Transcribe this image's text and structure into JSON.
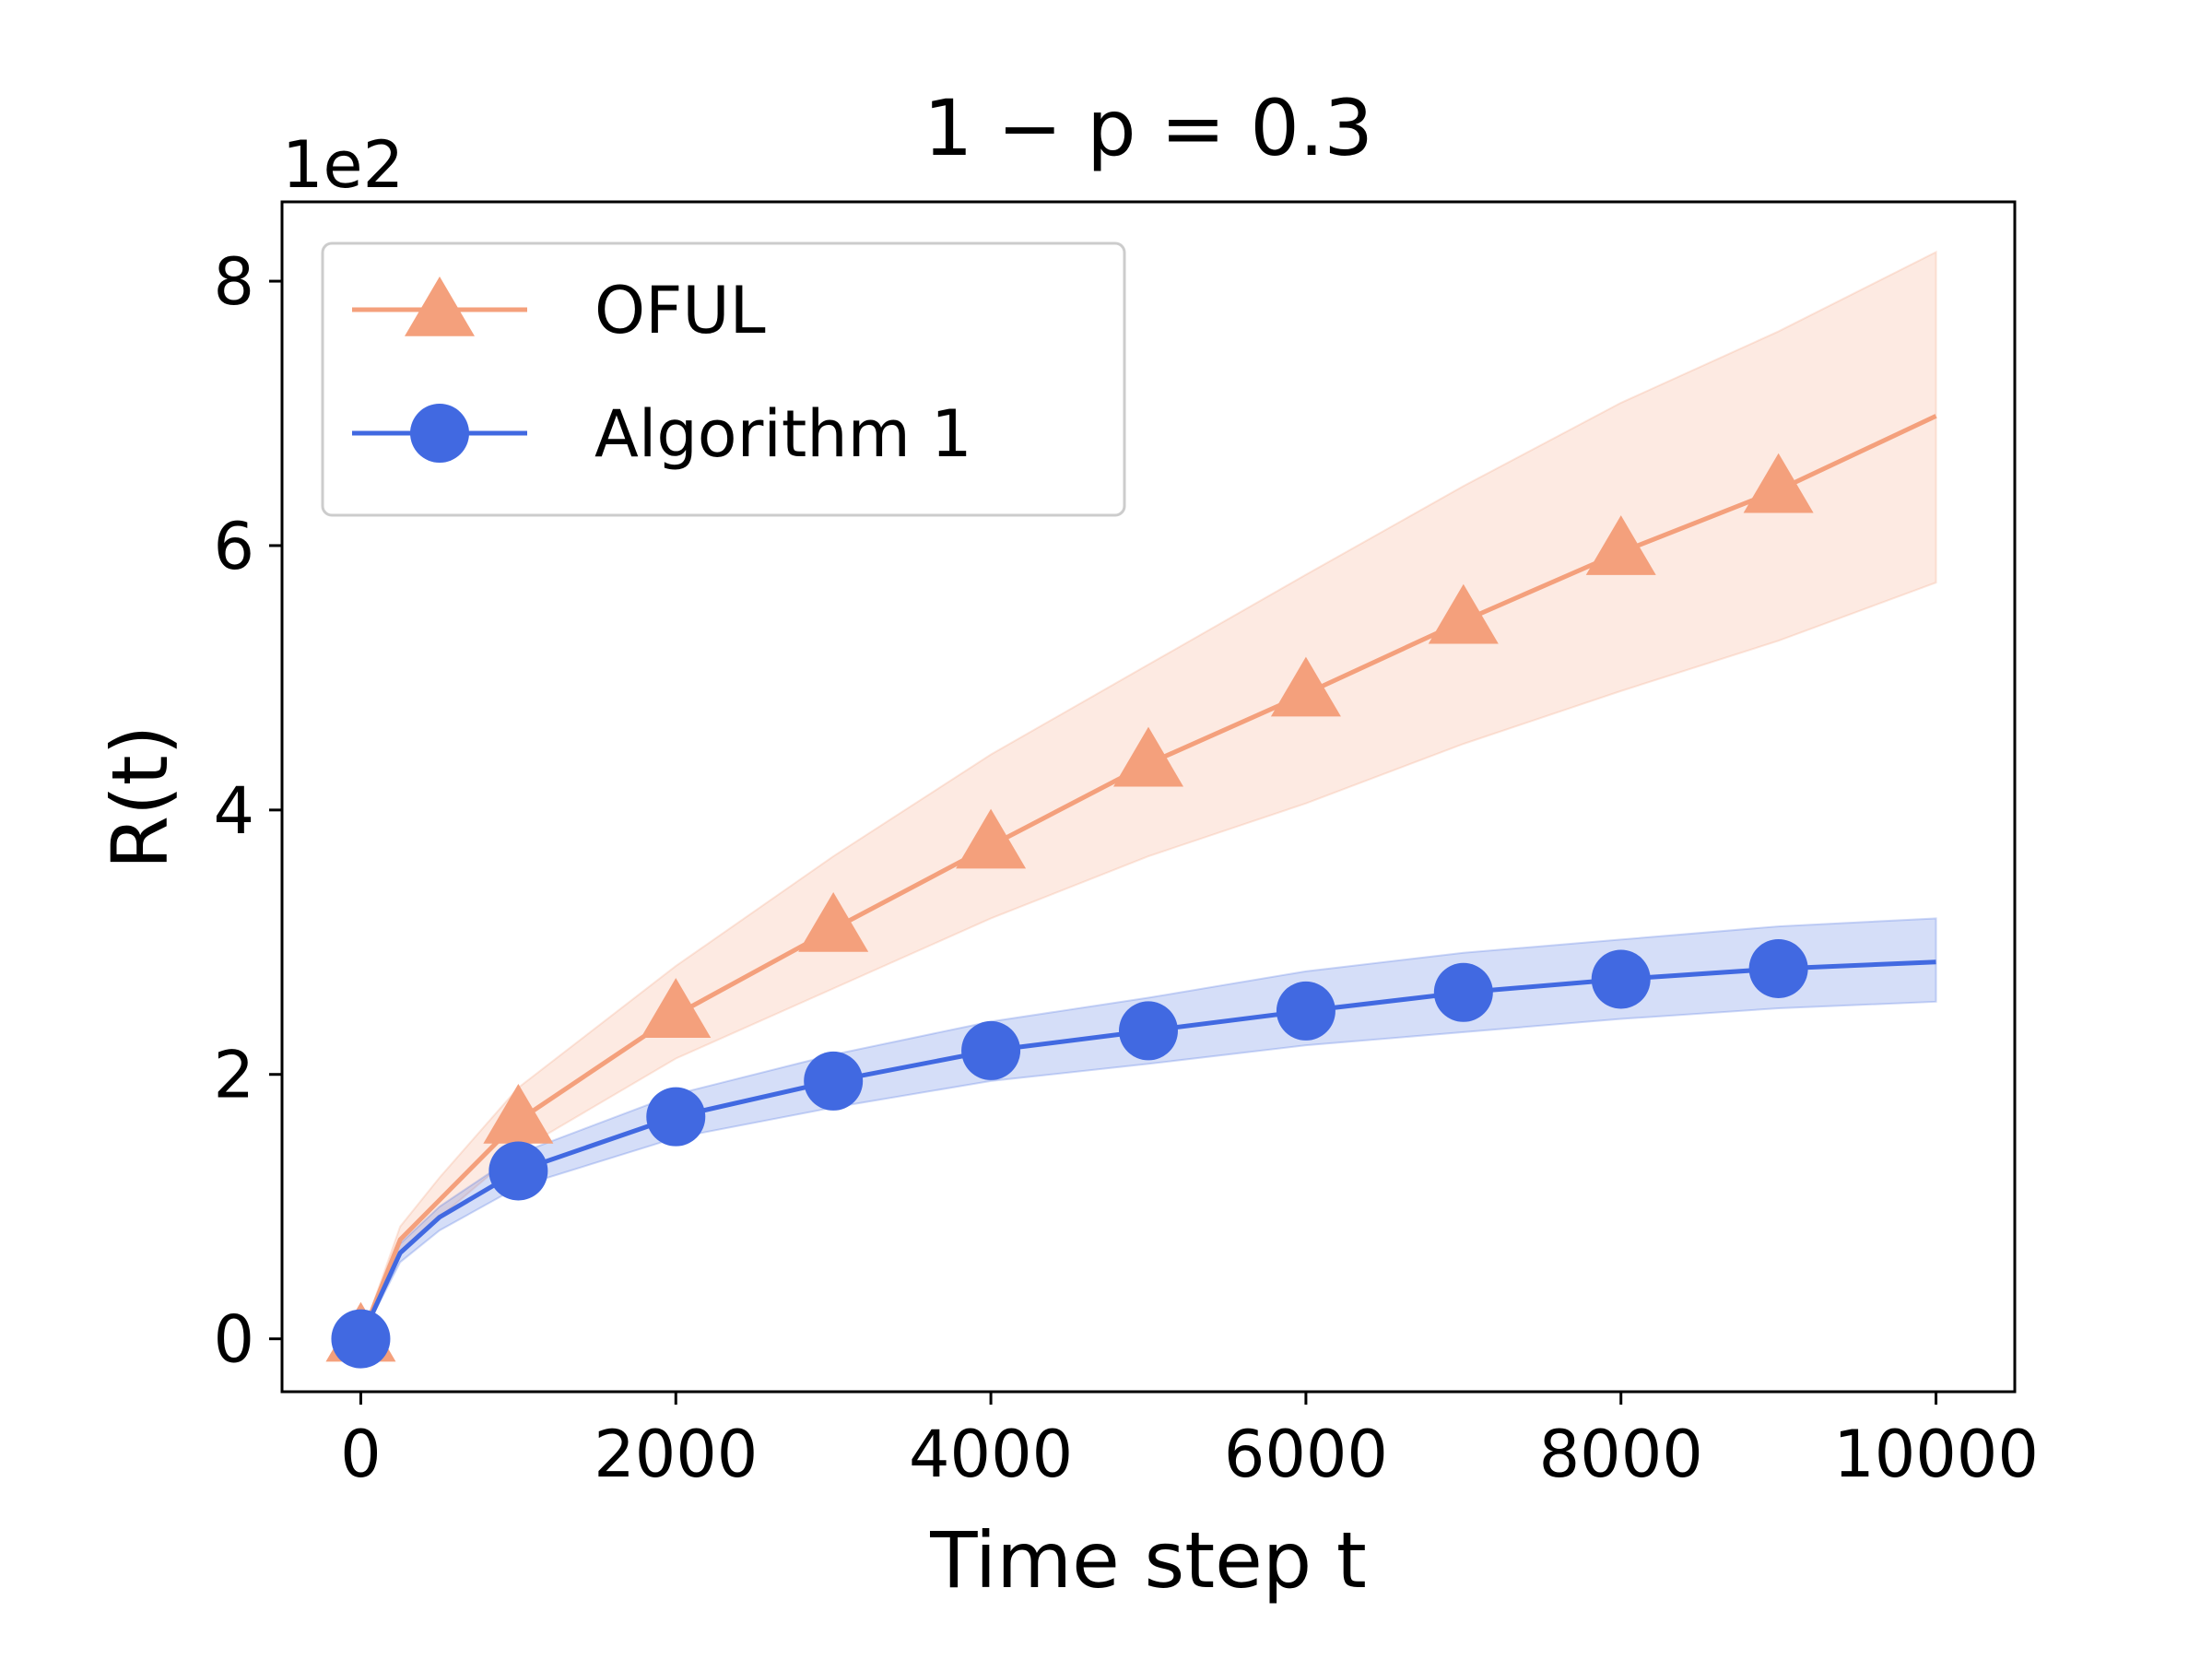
{
  "chart_data": {
    "type": "line",
    "title": "1 − p = 0.3",
    "xlabel": "Time step t",
    "ylabel": "R(t)",
    "y_scale_label": "1e2",
    "xlim": [
      -500,
      10500
    ],
    "ylim": [
      -0.4,
      8.6
    ],
    "x_ticks": [
      0,
      2000,
      4000,
      6000,
      8000,
      10000
    ],
    "y_ticks": [
      0,
      2,
      4,
      6,
      8
    ],
    "grid": false,
    "legend_position": "top-left",
    "series": [
      {
        "name": "OFUL",
        "color": "#f4a07c",
        "marker": "triangle",
        "x": [
          0,
          250,
          500,
          1000,
          2000,
          3000,
          4000,
          5000,
          6000,
          7000,
          8000,
          9000,
          10000
        ],
        "mean": [
          0,
          0.75,
          1.05,
          1.65,
          2.45,
          3.1,
          3.73,
          4.35,
          4.88,
          5.43,
          5.95,
          6.42,
          6.98
        ],
        "upper": [
          0,
          0.85,
          1.22,
          1.9,
          2.82,
          3.65,
          4.42,
          5.1,
          5.78,
          6.45,
          7.08,
          7.62,
          8.22
        ],
        "lower": [
          0,
          0.65,
          0.92,
          1.42,
          2.12,
          2.65,
          3.18,
          3.65,
          4.05,
          4.5,
          4.9,
          5.28,
          5.72
        ],
        "markers_x": [
          0,
          1000,
          2000,
          3000,
          4000,
          5000,
          6000,
          7000,
          8000,
          9000
        ],
        "markers_y": [
          0,
          1.65,
          2.45,
          3.1,
          3.73,
          4.35,
          4.88,
          5.43,
          5.95,
          6.42
        ]
      },
      {
        "name": "Algorithm 1",
        "color": "#4169e1",
        "marker": "circle",
        "x": [
          0,
          250,
          500,
          1000,
          2000,
          3000,
          4000,
          5000,
          6000,
          7000,
          8000,
          9000,
          10000
        ],
        "mean": [
          0,
          0.65,
          0.92,
          1.27,
          1.68,
          1.95,
          2.18,
          2.33,
          2.48,
          2.62,
          2.72,
          2.8,
          2.85
        ],
        "upper": [
          0,
          0.72,
          1.0,
          1.4,
          1.85,
          2.15,
          2.4,
          2.58,
          2.78,
          2.92,
          3.02,
          3.12,
          3.18
        ],
        "lower": [
          0,
          0.58,
          0.82,
          1.15,
          1.52,
          1.75,
          1.95,
          2.08,
          2.22,
          2.32,
          2.42,
          2.5,
          2.55
        ],
        "markers_x": [
          0,
          1000,
          2000,
          3000,
          4000,
          5000,
          6000,
          7000,
          8000,
          9000
        ],
        "markers_y": [
          0,
          1.27,
          1.68,
          1.95,
          2.18,
          2.33,
          2.48,
          2.62,
          2.72,
          2.8
        ]
      }
    ]
  }
}
